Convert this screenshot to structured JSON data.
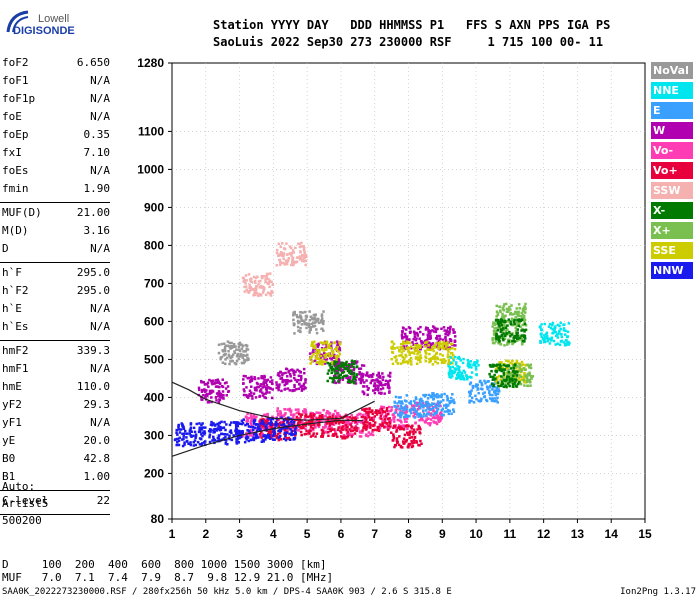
{
  "logo": {
    "line1": "Lowell",
    "line2": "DIGISONDE"
  },
  "header": {
    "line1": "Station YYYY DAY   DDD HHMMSS P1   FFS S AXN PPS IGA PS",
    "line2": "SaoLuis 2022 Sep30 273 230000 RSF     1 715 100 00- 11"
  },
  "params_group1": [
    {
      "key": "foF2",
      "value": "6.650"
    },
    {
      "key": "foF1",
      "value": "N/A"
    },
    {
      "key": "foF1p",
      "value": "N/A"
    },
    {
      "key": "foE",
      "value": "N/A"
    },
    {
      "key": "foEp",
      "value": "0.35"
    },
    {
      "key": "fxI",
      "value": "7.10"
    },
    {
      "key": "foEs",
      "value": "N/A"
    },
    {
      "key": "fmin",
      "value": "1.90"
    }
  ],
  "params_group2": [
    {
      "key": "MUF(D)",
      "value": "21.00"
    },
    {
      "key": "M(D)",
      "value": "3.16"
    },
    {
      "key": "D",
      "value": "N/A"
    }
  ],
  "params_group3": [
    {
      "key": "h`F",
      "value": "295.0"
    },
    {
      "key": "h`F2",
      "value": "295.0"
    },
    {
      "key": "h`E",
      "value": "N/A"
    },
    {
      "key": "h`Es",
      "value": "N/A"
    }
  ],
  "params_group4": [
    {
      "key": "hmF2",
      "value": "339.3"
    },
    {
      "key": "hmF1",
      "value": "N/A"
    },
    {
      "key": "hmE",
      "value": "110.0"
    },
    {
      "key": "yF2",
      "value": "29.3"
    },
    {
      "key": "yF1",
      "value": "N/A"
    },
    {
      "key": "yE",
      "value": "20.0"
    },
    {
      "key": "B0",
      "value": "42.8"
    },
    {
      "key": "B1",
      "value": "1.00"
    }
  ],
  "params_group5": [
    {
      "key": "C-level",
      "value": "22"
    }
  ],
  "auto": {
    "line1": "Auto:",
    "line2": "Artist5",
    "line3": "500200"
  },
  "bottom": {
    "d_row": "D     100  200  400  600  800 1000 1500 3000 [km]",
    "muf_row": "MUF   7.0  7.1  7.4  7.9  8.7  9.8 12.9 21.0 [MHz]"
  },
  "footer": {
    "left": "SAA0K_2022273230000.RSF / 280fx256h 50 kHz 5.0 km / DPS-4 SAA0K 903 / 2.6 S 315.8 E",
    "right": "Ion2Png 1.3.17"
  },
  "legend": [
    {
      "label": "NoVal",
      "color": "#999999"
    },
    {
      "label": "NNE",
      "color": "#00e5ee"
    },
    {
      "label": "E",
      "color": "#3aa0ff"
    },
    {
      "label": "W",
      "color": "#b000b0"
    },
    {
      "label": "Vo-",
      "color": "#ff3cb4"
    },
    {
      "label": "Vo+",
      "color": "#e8003c"
    },
    {
      "label": "SSW",
      "color": "#f5b0b0"
    },
    {
      "label": "X-",
      "color": "#007a00"
    },
    {
      "label": "X+",
      "color": "#7ac050"
    },
    {
      "label": "SSE",
      "color": "#cccc00"
    },
    {
      "label": "NNW",
      "color": "#1a1aee"
    }
  ],
  "chart_data": {
    "type": "scatter",
    "xlim": [
      1,
      15
    ],
    "xticks": [
      1,
      2,
      3,
      4,
      5,
      6,
      7,
      8,
      9,
      10,
      11,
      12,
      13,
      14,
      15
    ],
    "ylim": [
      80,
      1280
    ],
    "yticks": [
      80,
      200,
      300,
      400,
      500,
      600,
      700,
      800,
      900,
      1000,
      1100,
      1280
    ],
    "grid": true,
    "legend_position": "right",
    "series": [
      {
        "name": "W",
        "color": "#b000b0",
        "clusters": [
          [
            2.2,
            420
          ],
          [
            3.5,
            430
          ],
          [
            4.5,
            450
          ],
          [
            5.5,
            520
          ],
          [
            6.2,
            470
          ],
          [
            7.0,
            440
          ],
          [
            8.2,
            560
          ],
          [
            8.9,
            560
          ]
        ]
      },
      {
        "name": "Vo-",
        "color": "#ff3cb4",
        "clusters": [
          [
            3.5,
            330
          ],
          [
            4.5,
            345
          ],
          [
            5.5,
            340
          ],
          [
            6.5,
            330
          ],
          [
            7.5,
            350
          ],
          [
            8.5,
            360
          ]
        ]
      },
      {
        "name": "Vo+",
        "color": "#e8003c",
        "clusters": [
          [
            4.0,
            320
          ],
          [
            5.0,
            330
          ],
          [
            6.0,
            325
          ],
          [
            7.0,
            345
          ],
          [
            7.9,
            300
          ]
        ]
      },
      {
        "name": "NNW",
        "color": "#1a1aee",
        "clusters": [
          [
            1.5,
            305
          ],
          [
            2.5,
            310
          ],
          [
            3.3,
            315
          ],
          [
            4.2,
            320
          ]
        ]
      },
      {
        "name": "E",
        "color": "#3aa0ff",
        "clusters": [
          [
            8.0,
            380
          ],
          [
            8.9,
            385
          ],
          [
            10.2,
            420
          ]
        ]
      },
      {
        "name": "SSE",
        "color": "#cccc00",
        "clusters": [
          [
            5.5,
            520
          ],
          [
            7.9,
            520
          ],
          [
            8.9,
            520
          ],
          [
            11.0,
            470
          ]
        ]
      },
      {
        "name": "X+",
        "color": "#7ac050",
        "clusters": [
          [
            10.9,
            570
          ],
          [
            11.2,
            460
          ],
          [
            11.0,
            620
          ]
        ]
      },
      {
        "name": "X-",
        "color": "#007a00",
        "clusters": [
          [
            11.0,
            580
          ],
          [
            10.8,
            460
          ],
          [
            6.0,
            470
          ]
        ]
      },
      {
        "name": "NNE",
        "color": "#00e5ee",
        "clusters": [
          [
            9.6,
            480
          ],
          [
            12.3,
            570
          ]
        ]
      },
      {
        "name": "SSW",
        "color": "#f5b0b0",
        "clusters": [
          [
            3.5,
            700
          ],
          [
            4.5,
            780
          ]
        ]
      },
      {
        "name": "NoVal",
        "color": "#999999",
        "clusters": [
          [
            2.8,
            520
          ],
          [
            5.0,
            600
          ]
        ]
      }
    ],
    "profile": [
      [
        1.0,
        245
      ],
      [
        2.0,
        275
      ],
      [
        3.0,
        300
      ],
      [
        4.0,
        318
      ],
      [
        5.0,
        330
      ],
      [
        6.0,
        340
      ],
      [
        6.65,
        339
      ]
    ],
    "profile2": [
      [
        1.0,
        440
      ],
      [
        1.5,
        420
      ],
      [
        2.0,
        395
      ],
      [
        3.0,
        365
      ],
      [
        4.0,
        345
      ],
      [
        5.0,
        340
      ],
      [
        6.0,
        345
      ],
      [
        7.0,
        390
      ]
    ]
  }
}
